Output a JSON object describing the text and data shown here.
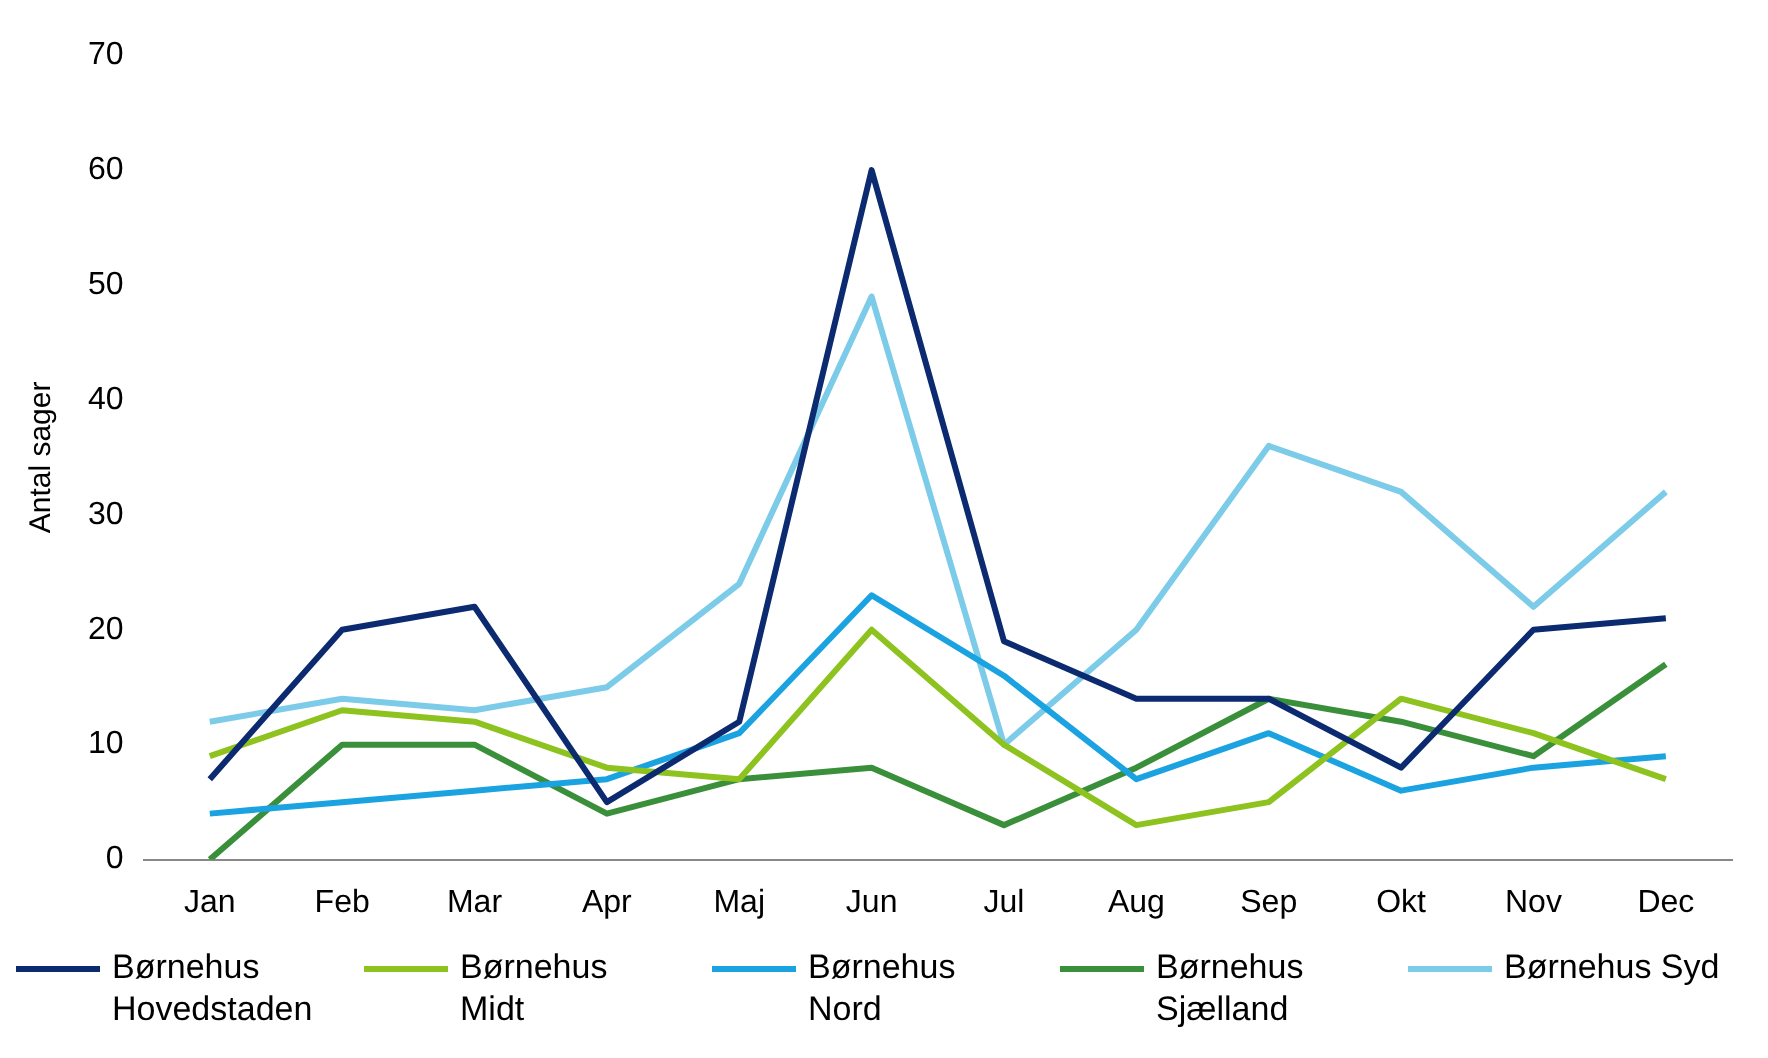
{
  "chart_data": {
    "type": "line",
    "ylabel": "Antal sager",
    "categories": [
      "Jan",
      "Feb",
      "Mar",
      "Apr",
      "Maj",
      "Jun",
      "Jul",
      "Aug",
      "Sep",
      "Okt",
      "Nov",
      "Dec"
    ],
    "ylim": [
      0,
      70
    ],
    "yticks": [
      0,
      10,
      20,
      30,
      40,
      50,
      60,
      70
    ],
    "legend": "bottom",
    "marker": "none",
    "series": [
      {
        "name": "Børnehus Hovedstaden",
        "color": "#0b2a6f",
        "values": [
          7,
          20,
          22,
          5,
          12,
          60,
          19,
          14,
          14,
          8,
          20,
          21
        ]
      },
      {
        "name": "Børnehus Midt",
        "color": "#8dc21f",
        "values": [
          9,
          13,
          12,
          8,
          7,
          20,
          10,
          3,
          5,
          14,
          11,
          7
        ]
      },
      {
        "name": "Børnehus Nord",
        "color": "#1aa3e0",
        "values": [
          4,
          5,
          6,
          7,
          11,
          23,
          16,
          7,
          11,
          6,
          8,
          9
        ]
      },
      {
        "name": "Børnehus Sjælland",
        "color": "#3a8f3a",
        "values": [
          0,
          10,
          10,
          4,
          7,
          8,
          3,
          8,
          14,
          12,
          9,
          17
        ]
      },
      {
        "name": "Børnehus Syd",
        "color": "#7ccbe8",
        "values": [
          12,
          14,
          13,
          15,
          24,
          49,
          10,
          20,
          36,
          32,
          22,
          32
        ]
      }
    ]
  }
}
